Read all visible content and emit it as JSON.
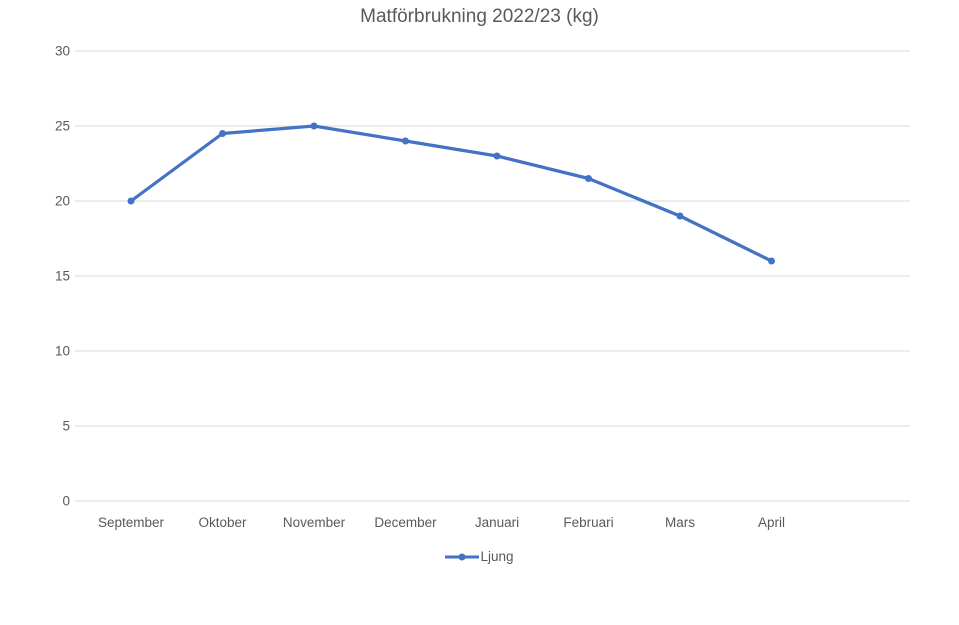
{
  "chart": {
    "colors": {
      "line": "#4472C4",
      "gridline": "#D9D9D9",
      "text": "#595959",
      "background": "#FFFFFF"
    }
  },
  "chart_data": {
    "type": "line",
    "title": "Matförbrukning 2022/23 (kg)",
    "categories": [
      "September",
      "Oktober",
      "November",
      "December",
      "Januari",
      "Februari",
      "Mars",
      "April"
    ],
    "series": [
      {
        "name": "Ljung",
        "values": [
          20,
          24.5,
          25,
          24,
          23,
          21.5,
          19,
          16
        ],
        "color": "#4472C4",
        "marker": "circle"
      }
    ],
    "xlabel": "",
    "ylabel": "",
    "ylim": [
      0,
      30
    ],
    "yticks": [
      0,
      5,
      10,
      15,
      20,
      25,
      30
    ],
    "grid": true,
    "legend_position": "bottom"
  }
}
